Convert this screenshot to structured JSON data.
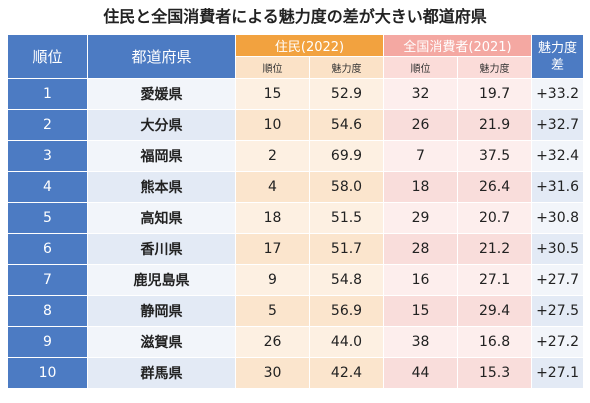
{
  "title": "住民と全国消費者による魅力度の差が大きい都道府県",
  "headers": {
    "rank": "順位",
    "prefecture": "都道府県",
    "residents_group": "住民(2022)",
    "consumers_group": "全国消費者(2021)",
    "diff": "魅力度差",
    "sub_rank": "順位",
    "sub_score": "魅力度"
  },
  "rows": [
    {
      "rank": "1",
      "pref": "愛媛県",
      "res_rank": "15",
      "res_score": "52.9",
      "con_rank": "32",
      "con_score": "19.7",
      "diff": "+33.2"
    },
    {
      "rank": "2",
      "pref": "大分県",
      "res_rank": "10",
      "res_score": "54.6",
      "con_rank": "26",
      "con_score": "21.9",
      "diff": "+32.7"
    },
    {
      "rank": "3",
      "pref": "福岡県",
      "res_rank": "2",
      "res_score": "69.9",
      "con_rank": "7",
      "con_score": "37.5",
      "diff": "+32.4"
    },
    {
      "rank": "4",
      "pref": "熊本県",
      "res_rank": "4",
      "res_score": "58.0",
      "con_rank": "18",
      "con_score": "26.4",
      "diff": "+31.6"
    },
    {
      "rank": "5",
      "pref": "高知県",
      "res_rank": "18",
      "res_score": "51.5",
      "con_rank": "29",
      "con_score": "20.7",
      "diff": "+30.8"
    },
    {
      "rank": "6",
      "pref": "香川県",
      "res_rank": "17",
      "res_score": "51.7",
      "con_rank": "28",
      "con_score": "21.2",
      "diff": "+30.5"
    },
    {
      "rank": "7",
      "pref": "鹿児島県",
      "res_rank": "9",
      "res_score": "54.8",
      "con_rank": "16",
      "con_score": "27.1",
      "diff": "+27.7"
    },
    {
      "rank": "8",
      "pref": "静岡県",
      "res_rank": "5",
      "res_score": "56.9",
      "con_rank": "15",
      "con_score": "29.4",
      "diff": "+27.5"
    },
    {
      "rank": "9",
      "pref": "滋賀県",
      "res_rank": "26",
      "res_score": "44.0",
      "con_rank": "38",
      "con_score": "16.8",
      "diff": "+27.2"
    },
    {
      "rank": "10",
      "pref": "群馬県",
      "res_rank": "30",
      "res_score": "42.4",
      "con_rank": "44",
      "con_score": "15.3",
      "diff": "+27.1"
    }
  ]
}
